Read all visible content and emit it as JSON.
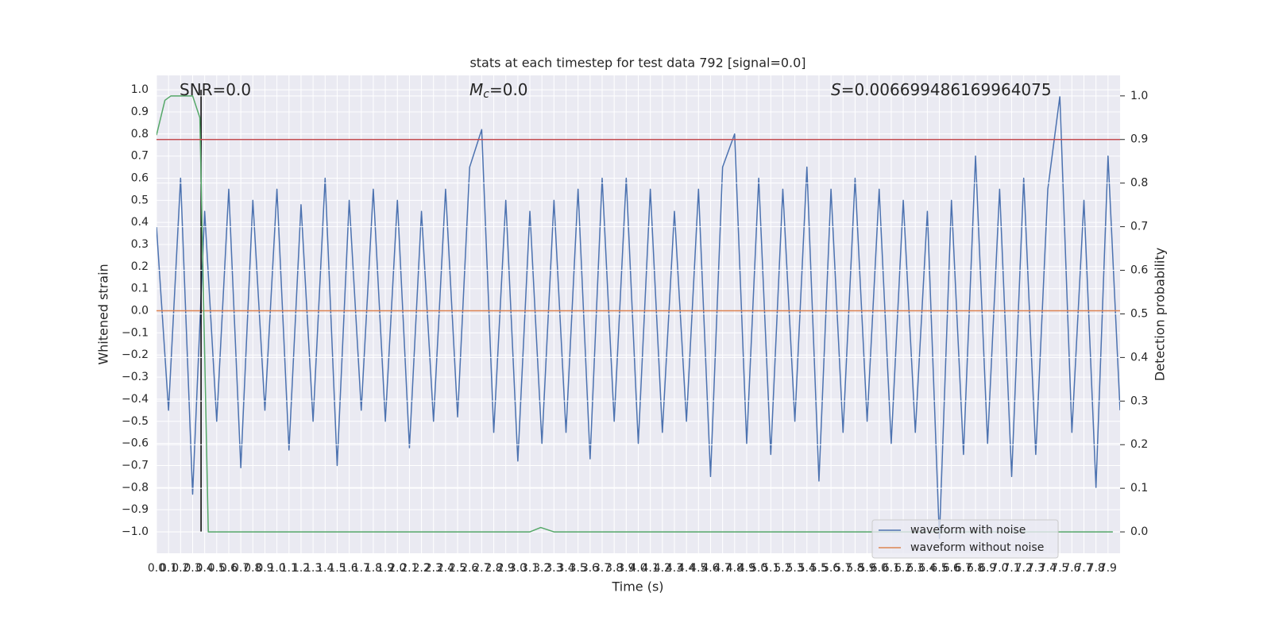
{
  "chart_data": {
    "type": "line",
    "title": "stats at each timestep for test data 792 [signal=0.0]",
    "xlabel": "Time (s)",
    "ylabel": "Whitened strain",
    "y2label": "Detection probability",
    "annotations": [
      {
        "text": "SNR=0.0"
      },
      {
        "symbol": "M",
        "subscript": "c",
        "text": "=0.0"
      },
      {
        "symbol": "S",
        "text": "=0.006699486169964075"
      }
    ],
    "xlim": [
      0,
      8.0
    ],
    "ylim": [
      -1.097,
      1.065
    ],
    "y2lim": [
      -0.049,
      1.047
    ],
    "xticks": [
      {
        "value": 0,
        "label": "0.0"
      },
      0.1,
      0.2,
      0.3,
      0.4,
      0.5,
      0.6,
      0.7,
      0.8,
      0.9,
      {
        "value": 1,
        "label": "1.0"
      },
      1.1,
      1.2,
      1.3,
      1.4,
      1.5,
      1.6,
      1.7,
      1.8,
      1.9,
      {
        "value": 2,
        "label": "2.0"
      },
      2.1,
      2.2,
      2.3,
      2.4,
      2.5,
      2.6,
      2.7,
      2.8,
      2.9,
      {
        "value": 3,
        "label": "3.0"
      },
      3.1,
      3.2,
      3.3,
      3.4,
      3.5,
      3.6,
      3.7,
      3.8,
      3.9,
      {
        "value": 4,
        "label": "4.0"
      },
      4.1,
      4.2,
      4.3,
      4.4,
      4.5,
      4.6,
      4.7,
      4.8,
      4.9,
      {
        "value": 5,
        "label": "5.0"
      },
      5.1,
      5.2,
      5.3,
      5.4,
      5.5,
      5.6,
      5.7,
      5.8,
      5.9,
      {
        "value": 6,
        "label": "6.0"
      },
      6.1,
      6.2,
      6.3,
      6.4,
      6.5,
      6.6,
      6.7,
      6.8,
      6.9,
      {
        "value": 7,
        "label": "7.0"
      },
      7.1,
      7.2,
      7.3,
      7.4,
      7.5,
      7.6,
      7.7,
      7.8,
      7.9
    ],
    "yticks": [
      {
        "value": -1,
        "label": "−1.0"
      },
      {
        "value": -0.9,
        "label": "−0.9"
      },
      {
        "value": -0.8,
        "label": "−0.8"
      },
      {
        "value": -0.7,
        "label": "−0.7"
      },
      {
        "value": -0.6,
        "label": "−0.6"
      },
      {
        "value": -0.5,
        "label": "−0.5"
      },
      {
        "value": -0.4,
        "label": "−0.4"
      },
      {
        "value": -0.3,
        "label": "−0.3"
      },
      {
        "value": -0.2,
        "label": "−0.2"
      },
      {
        "value": -0.1,
        "label": "−0.1"
      },
      {
        "value": 0,
        "label": "0.0"
      },
      0.1,
      0.2,
      0.3,
      0.4,
      0.5,
      0.6,
      0.7,
      0.8,
      0.9,
      {
        "value": 1,
        "label": "1.0"
      }
    ],
    "y2ticks": [
      {
        "value": 0,
        "label": "0.0"
      },
      0.1,
      0.2,
      0.3,
      0.4,
      0.5,
      0.6,
      0.7,
      0.8,
      0.9,
      {
        "value": 1,
        "label": "1.0"
      }
    ],
    "grid": true,
    "legend": "lower right",
    "series": [
      {
        "name": "waveform with noise",
        "color": "#4c72b0",
        "x": [
          0.0,
          0.1,
          0.2,
          0.3,
          0.4,
          0.5,
          0.6,
          0.7,
          0.8,
          0.9,
          1.0,
          1.1,
          1.2,
          1.3,
          1.4,
          1.5,
          1.6,
          1.7,
          1.8,
          1.9,
          2.0,
          2.1,
          2.2,
          2.3,
          2.4,
          2.5,
          2.6,
          2.7,
          2.8,
          2.9,
          3.0,
          3.1,
          3.2,
          3.3,
          3.4,
          3.5,
          3.6,
          3.7,
          3.8,
          3.9,
          4.0,
          4.1,
          4.2,
          4.3,
          4.4,
          4.5,
          4.6,
          4.7,
          4.8,
          4.9,
          5.0,
          5.1,
          5.2,
          5.3,
          5.4,
          5.5,
          5.6,
          5.7,
          5.8,
          5.9,
          6.0,
          6.1,
          6.2,
          6.3,
          6.4,
          6.5,
          6.6,
          6.7,
          6.8,
          6.9,
          7.0,
          7.1,
          7.2,
          7.3,
          7.4,
          7.5,
          7.6,
          7.7,
          7.8,
          7.9,
          8.0
        ],
        "values": [
          0.38,
          -0.45,
          0.6,
          -0.83,
          0.45,
          -0.5,
          0.55,
          -0.71,
          0.5,
          -0.45,
          0.55,
          -0.63,
          0.48,
          -0.5,
          0.6,
          -0.7,
          0.5,
          -0.45,
          0.55,
          -0.5,
          0.5,
          -0.62,
          0.45,
          -0.5,
          0.55,
          -0.48,
          0.65,
          0.82,
          -0.55,
          0.5,
          -0.68,
          0.45,
          -0.6,
          0.5,
          -0.55,
          0.55,
          -0.67,
          0.6,
          -0.5,
          0.6,
          -0.6,
          0.55,
          -0.55,
          0.45,
          -0.5,
          0.55,
          -0.75,
          0.65,
          0.8,
          -0.6,
          0.6,
          -0.65,
          0.55,
          -0.5,
          0.65,
          -0.77,
          0.55,
          -0.55,
          0.6,
          -0.5,
          0.55,
          -0.6,
          0.5,
          -0.55,
          0.45,
          -1.03,
          0.5,
          -0.65,
          0.7,
          -0.6,
          0.55,
          -0.75,
          0.6,
          -0.65,
          0.55,
          0.97,
          -0.55,
          0.5,
          -0.8,
          0.7,
          -0.45
        ]
      },
      {
        "name": "waveform without noise",
        "color": "#dd8452",
        "x": [
          0,
          8.0
        ],
        "values": [
          0,
          0
        ]
      },
      {
        "color": "#55a868",
        "axis": "y2",
        "x": [
          0,
          0.07,
          0.12,
          0.3,
          0.36,
          0.43,
          3.1,
          3.19,
          3.3,
          7.94
        ],
        "values": [
          0.91,
          0.99,
          1.0,
          1.0,
          0.95,
          0,
          0,
          0.01,
          0,
          0
        ]
      }
    ],
    "threshold": {
      "value": 0.9,
      "color": "#c44e52",
      "axis": "y2"
    },
    "vline": {
      "x": 0.37,
      "ymin": -1.0,
      "ymax": 1.0,
      "color": "#000000"
    }
  }
}
